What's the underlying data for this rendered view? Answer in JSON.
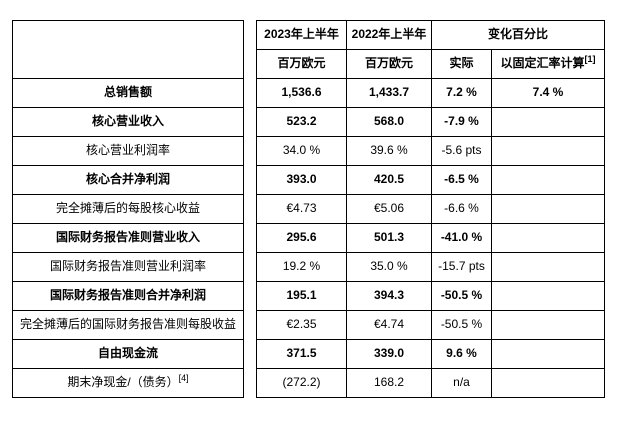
{
  "page": {
    "background_color": "#ffffff",
    "border_color": "#000000",
    "text_color": "#000000"
  },
  "table": {
    "header": {
      "col_2023": "2023年上半年",
      "col_2022": "2022年上半年",
      "col_change": "变化百分比",
      "unit_2023": "百万欧元",
      "unit_2022": "百万欧元",
      "sub_actual": "实际",
      "sub_constant_rates": "以固定汇率计算",
      "sub_constant_rates_footnote": "[1]"
    },
    "rows": [
      {
        "label": "总销售额",
        "bold": true,
        "v2023": "1,536.6",
        "v2022": "1,433.7",
        "actual": "7.2 %",
        "constant": "7.4 %"
      },
      {
        "label": "核心营业收入",
        "bold": true,
        "v2023": "523.2",
        "v2022": "568.0",
        "actual": "-7.9 %",
        "constant": ""
      },
      {
        "label": "核心营业利润率",
        "bold": false,
        "v2023": "34.0 %",
        "v2022": "39.6 %",
        "actual": "-5.6 pts",
        "constant": ""
      },
      {
        "label": "核心合并净利润",
        "bold": true,
        "v2023": "393.0",
        "v2022": "420.5",
        "actual": "-6.5 %",
        "constant": ""
      },
      {
        "label": "完全摊薄后的每股核心收益",
        "bold": false,
        "v2023": "€4.73",
        "v2022": "€5.06",
        "actual": "-6.6 %",
        "constant": ""
      },
      {
        "label": "国际财务报告准则营业收入",
        "bold": true,
        "v2023": "295.6",
        "v2022": "501.3",
        "actual": "-41.0 %",
        "constant": ""
      },
      {
        "label": "国际财务报告准则营业利润率",
        "bold": false,
        "v2023": "19.2 %",
        "v2022": "35.0 %",
        "actual": "-15.7 pts",
        "constant": ""
      },
      {
        "label": "国际财务报告准则合并净利润",
        "bold": true,
        "v2023": "195.1",
        "v2022": "394.3",
        "actual": "-50.5 %",
        "constant": ""
      },
      {
        "label": "完全摊薄后的国际财务报告准则每股收益",
        "bold": false,
        "v2023": "€2.35",
        "v2022": "€4.74",
        "actual": "-50.5 %",
        "constant": ""
      },
      {
        "label": "自由现金流",
        "bold": true,
        "v2023": "371.5",
        "v2022": "339.0",
        "actual": "9.6 %",
        "constant": ""
      },
      {
        "label": "期末净现金/（债务）",
        "label_footnote": "[4]",
        "bold": false,
        "v2023": "(272.2)",
        "v2022": "168.2",
        "actual": "n/a",
        "constant": ""
      }
    ]
  }
}
